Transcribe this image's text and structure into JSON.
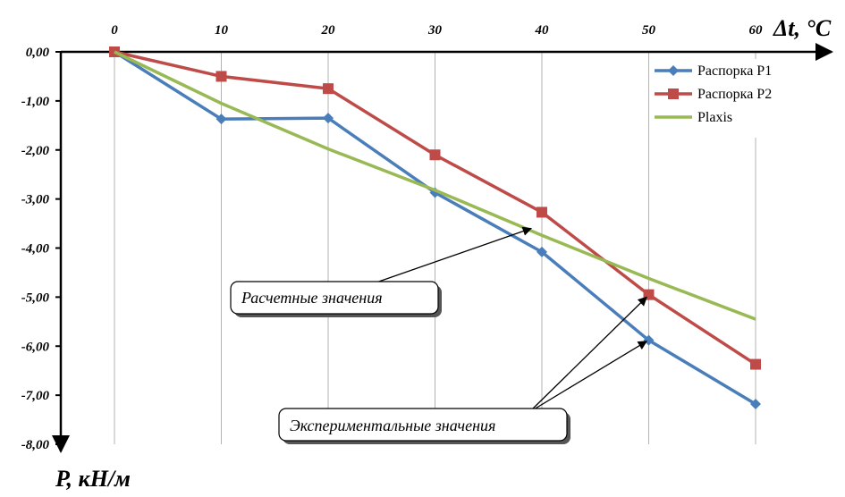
{
  "chart_data": {
    "type": "line",
    "x": [
      0,
      10,
      20,
      30,
      40,
      50,
      60
    ],
    "xlabel": "Δt, °C",
    "ylabel": "P, кН/м",
    "x_ticks": [
      "0",
      "10",
      "20",
      "30",
      "40",
      "50",
      "60"
    ],
    "y_ticks": [
      "0,00",
      "-1,00",
      "-2,00",
      "-3,00",
      "-4,00",
      "-5,00",
      "-6,00",
      "-7,00",
      "-8,00"
    ],
    "xlim": [
      -5,
      60
    ],
    "ylim": [
      -8,
      0
    ],
    "x_axis_position": "top",
    "grid": "vertical",
    "legend_position": "top-right",
    "series": [
      {
        "name": "Распорка Р1",
        "color": "#4a7ebb",
        "marker": "diamond",
        "values": [
          0,
          -1.37,
          -1.35,
          -2.87,
          -4.08,
          -5.88,
          -7.18
        ]
      },
      {
        "name": "Распорка Р2",
        "color": "#be4b48",
        "marker": "square",
        "values": [
          0,
          -0.5,
          -0.75,
          -2.1,
          -3.27,
          -4.95,
          -6.37
        ]
      },
      {
        "name": "Plaxis",
        "color": "#98b954",
        "marker": "none",
        "values": [
          0,
          -1.05,
          -1.98,
          -2.82,
          -3.74,
          -4.62,
          -5.45
        ]
      }
    ],
    "annotations": [
      {
        "text": "Расчетные значения",
        "arrow_to": [
          [
            39,
            -3.6
          ]
        ]
      },
      {
        "text": "Экспериментальные значения",
        "arrow_to": [
          [
            49.8,
            -5.0
          ],
          [
            49.8,
            -5.9
          ]
        ]
      }
    ]
  }
}
